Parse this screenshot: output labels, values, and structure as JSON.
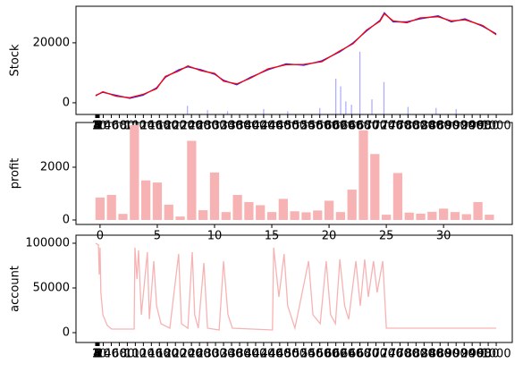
{
  "chart_data": [
    {
      "type": "line",
      "ylabel": "Stock",
      "xlim": [
        -48,
        1040
      ],
      "ylim": [
        -3900,
        32200
      ],
      "y2lim": [
        0,
        100
      ],
      "yticks": [
        0,
        20000
      ],
      "xticks": [
        1,
        2,
        3,
        4,
        5,
        6,
        7,
        8,
        9,
        10,
        20,
        40,
        60,
        80,
        100,
        120,
        140,
        160,
        180,
        200,
        220,
        240,
        260,
        280,
        300,
        320,
        340,
        360,
        380,
        400,
        420,
        440,
        460,
        480,
        500,
        520,
        540,
        560,
        580,
        600,
        620,
        640,
        660,
        680,
        700,
        720,
        740,
        760,
        780,
        800,
        820,
        840,
        860,
        880,
        900,
        920,
        940,
        960,
        980,
        1000
      ],
      "series": [
        {
          "color": "#0000ff",
          "x": [
            1,
            19,
            52,
            86,
            119,
            153,
            175,
            208,
            231,
            264,
            298,
            320,
            353,
            387,
            431,
            476,
            520,
            565,
            610,
            643,
            677,
            710,
            721,
            743,
            777,
            810,
            855,
            888,
            922,
            966,
            1000
          ],
          "values": [
            2500,
            3500,
            2500,
            1500,
            2500,
            5000,
            8500,
            11000,
            12000,
            11000,
            9500,
            7500,
            6000,
            8500,
            11000,
            13000,
            12500,
            14000,
            17000,
            20000,
            24000,
            27500,
            30000,
            27000,
            27000,
            28000,
            29000,
            27000,
            28000,
            25500,
            23000
          ]
        },
        {
          "color": "#ff0000",
          "x": [
            1,
            19,
            52,
            86,
            119,
            153,
            175,
            208,
            231,
            264,
            298,
            320,
            353,
            387,
            431,
            476,
            520,
            565,
            610,
            643,
            677,
            710,
            721,
            743,
            777,
            810,
            855,
            888,
            922,
            966,
            1000
          ],
          "values": [
            2300,
            3700,
            2200,
            1700,
            2800,
            4700,
            8800,
            10600,
            12300,
            10700,
            9800,
            7200,
            6300,
            8200,
            11300,
            12700,
            12800,
            13700,
            17300,
            19700,
            24300,
            27200,
            29700,
            27300,
            26700,
            28300,
            28700,
            27300,
            27700,
            25800,
            22700
          ]
        },
        {
          "type": "bar",
          "axis": "y2",
          "color": "#7070ff",
          "x": [
            230,
            280,
            330,
            420,
            480,
            560,
            600,
            612,
            625,
            639,
            660,
            690,
            720,
            780,
            850,
            900
          ],
          "values": [
            8,
            4,
            3,
            5,
            3,
            6,
            33,
            26,
            12,
            9,
            58,
            14,
            30,
            7,
            6,
            5
          ]
        }
      ]
    },
    {
      "type": "bar",
      "ylabel": "profit",
      "color": "#f7b3b3",
      "xlim": [
        -2.1,
        36
      ],
      "ylim": [
        -170,
        3695
      ],
      "xticks": [
        0,
        5,
        10,
        15,
        20,
        25,
        30
      ],
      "yticks": [
        0,
        2000
      ],
      "x": [
        0,
        1,
        2,
        3,
        4,
        5,
        6,
        7,
        8,
        9,
        10,
        11,
        12,
        13,
        14,
        15,
        16,
        17,
        18,
        19,
        20,
        21,
        22,
        23,
        24,
        25,
        26,
        27,
        28,
        29,
        30,
        31,
        32,
        33,
        34
      ],
      "values": [
        850,
        950,
        230,
        3600,
        1500,
        1420,
        580,
        130,
        3000,
        370,
        1800,
        300,
        950,
        680,
        560,
        300,
        800,
        330,
        290,
        360,
        730,
        300,
        1150,
        3400,
        2500,
        200,
        1780,
        280,
        240,
        310,
        430,
        300,
        220,
        680,
        200
      ]
    },
    {
      "type": "line",
      "ylabel": "account",
      "xlim": [
        -48,
        1040
      ],
      "ylim": [
        -11000,
        109000
      ],
      "yticks": [
        0,
        50000,
        100000
      ],
      "xticks": [
        1,
        2,
        3,
        4,
        5,
        6,
        7,
        8,
        9,
        10,
        20,
        40,
        60,
        80,
        100,
        120,
        140,
        160,
        180,
        200,
        220,
        240,
        260,
        280,
        300,
        320,
        340,
        360,
        380,
        400,
        420,
        440,
        460,
        480,
        500,
        520,
        540,
        560,
        580,
        600,
        620,
        640,
        660,
        680,
        700,
        720,
        740,
        760,
        780,
        800,
        820,
        840,
        860,
        880,
        900,
        920,
        940,
        960,
        980,
        1000
      ],
      "series": [
        {
          "color": "#f7b3b3",
          "x": [
            1,
            8,
            10,
            12,
            14,
            19,
            30,
            41,
            97,
            99,
            104,
            108,
            115,
            130,
            135,
            146,
            153,
            164,
            186,
            208,
            215,
            231,
            242,
            248,
            257,
            271,
            280,
            309,
            320,
            331,
            342,
            442,
            445,
            458,
            471,
            480,
            498,
            532,
            543,
            561,
            576,
            587,
            599,
            610,
            622,
            632,
            650,
            661,
            672,
            681,
            694,
            703,
            717,
            726,
            1000
          ],
          "values": [
            100000,
            98000,
            65000,
            95000,
            45000,
            20000,
            8000,
            4000,
            4000,
            95000,
            60000,
            92000,
            20000,
            90000,
            15000,
            80000,
            30000,
            10000,
            5000,
            88000,
            10000,
            5000,
            90000,
            20000,
            5000,
            78000,
            5000,
            3000,
            80000,
            20000,
            5000,
            3000,
            95000,
            40000,
            88000,
            30000,
            5000,
            80000,
            20000,
            10000,
            80000,
            20000,
            10000,
            82000,
            30000,
            15000,
            80000,
            30000,
            82000,
            40000,
            80000,
            45000,
            80000,
            5000,
            5000
          ]
        }
      ]
    }
  ]
}
